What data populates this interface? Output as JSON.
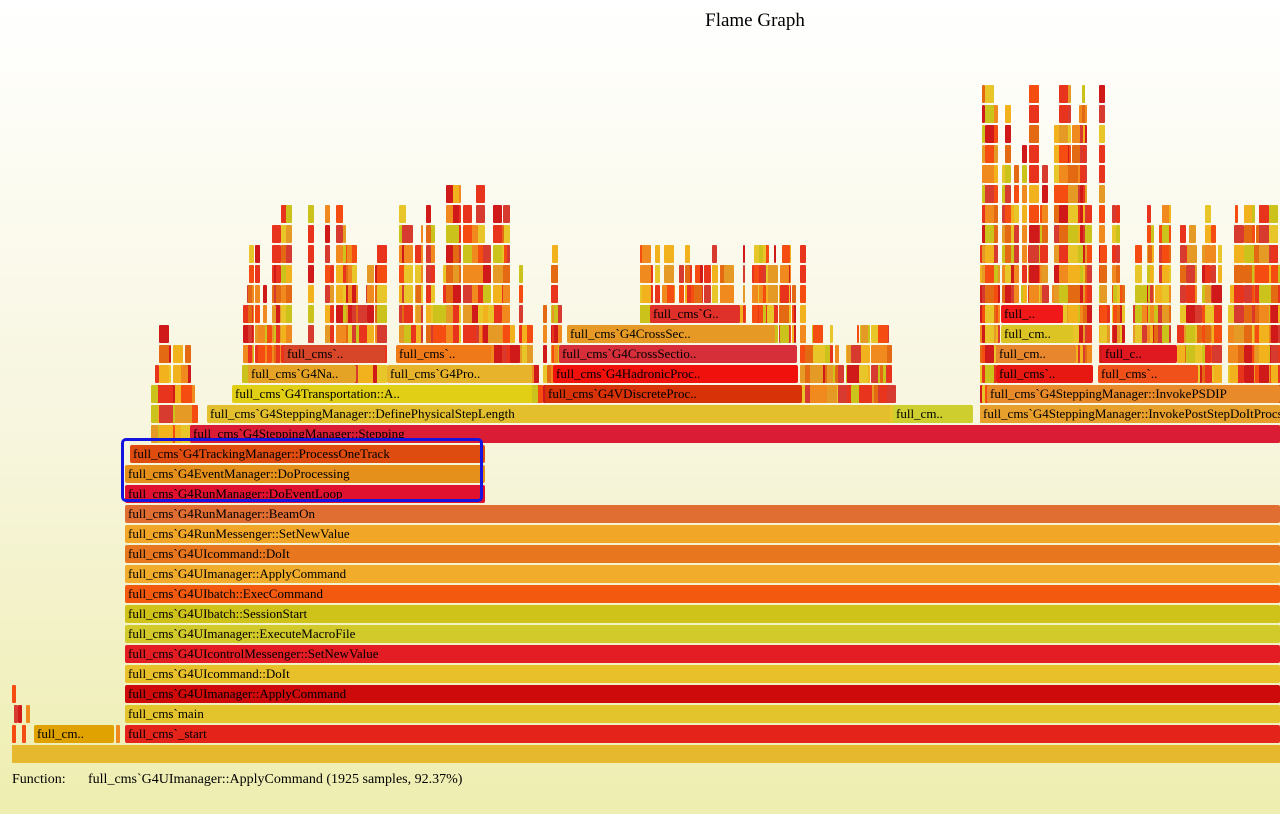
{
  "title": "Flame Graph",
  "status": {
    "label": "Function:",
    "details": "full_cms`G4UImanager::ApplyCommand (1925 samples, 92.37%)"
  },
  "frames": [
    {
      "label": "full_cm..",
      "color": "#e0a200"
    },
    {
      "label": "full_cms`_start",
      "color": "#e4231a"
    },
    {
      "label": "full_cms`main",
      "color": "#e3c42c"
    },
    {
      "label": "full_cms`G4UImanager::ApplyCommand",
      "color": "#cf0a0a"
    },
    {
      "label": "full_cms`G4UIcommand::DoIt",
      "color": "#e8c02a"
    },
    {
      "label": "full_cms`G4UIcontrolMessenger::SetNewValue",
      "color": "#e31d23"
    },
    {
      "label": "full_cms`G4UImanager::ExecuteMacroFile",
      "color": "#d2c92a"
    },
    {
      "label": "full_cms`G4UIbatch::SessionStart",
      "color": "#cfc31a"
    },
    {
      "label": "full_cms`G4UIbatch::ExecCommand",
      "color": "#f35a10"
    },
    {
      "label": "full_cms`G4UImanager::ApplyCommand",
      "color": "#f0ac2a"
    },
    {
      "label": "full_cms`G4UIcommand::DoIt",
      "color": "#e8761e"
    },
    {
      "label": "full_cms`G4RunMessenger::SetNewValue",
      "color": "#f2a628"
    },
    {
      "label": "full_cms`G4RunManager::BeamOn",
      "color": "#e06e32"
    },
    {
      "label": "full_cms`G4RunManager::DoEventLoop",
      "color": "#e0112e"
    },
    {
      "label": "full_cms`G4EventManager::DoProcessing",
      "color": "#e5901a"
    },
    {
      "label": "full_cms`G4TrackingManager::ProcessOneTrack",
      "color": "#de4c10"
    },
    {
      "label": "full_cms`G4SteppingManager::Stepping",
      "color": "#da1c35"
    },
    {
      "label": "full_cms`G4SteppingManager::DefinePhysicalStepLength",
      "color": "#e3bf2e"
    },
    {
      "label": "full_cm..",
      "color": "#cfce2f"
    },
    {
      "label": "full_cms`G4SteppingManager::InvokePostStepDoItProcs",
      "color": "#e8a02c"
    },
    {
      "label": "full_cms`G4Transportation::A..",
      "color": "#e0cf14"
    },
    {
      "label": "full_cms`G4VDiscreteProc..",
      "color": "#d73208"
    },
    {
      "label": "full_cms`G4SteppingManager::InvokePSDIP",
      "color": "#e88a2a"
    },
    {
      "label": "full_cms`G4Na..",
      "color": "#e5a325"
    },
    {
      "label": "full_cms`G4Pro..",
      "color": "#e6b32a"
    },
    {
      "label": "full_cms`G4HadronicProc..",
      "color": "#f0110d"
    },
    {
      "label": "full_cms`..",
      "color": "#e61811"
    },
    {
      "label": "full_cms`..",
      "color": "#f0511a"
    },
    {
      "label": "full_cms`..",
      "color": "#d8462a"
    },
    {
      "label": "full_cms`..",
      "color": "#ef7818"
    },
    {
      "label": "full_cms`G4CrossSectio..",
      "color": "#d62f3a"
    },
    {
      "label": "full_cm..",
      "color": "#e8862e"
    },
    {
      "label": "full_c..",
      "color": "#e01820"
    },
    {
      "label": "full_cms`G4CrossSec..",
      "color": "#e69a25"
    },
    {
      "label": "full_cm..",
      "color": "#dcc424"
    },
    {
      "label": "full_cms`G..",
      "color": "#e0302a"
    },
    {
      "label": "full_..",
      "color": "#f01818"
    }
  ],
  "colors": {
    "highlight": "#1515e0",
    "palette": [
      "#e8341c",
      "#f08a1e",
      "#e8c62a",
      "#d01a1a",
      "#f2b21e",
      "#e36a12",
      "#ccc21c",
      "#f54c12",
      "#e59a26",
      "#d73a2e"
    ]
  }
}
